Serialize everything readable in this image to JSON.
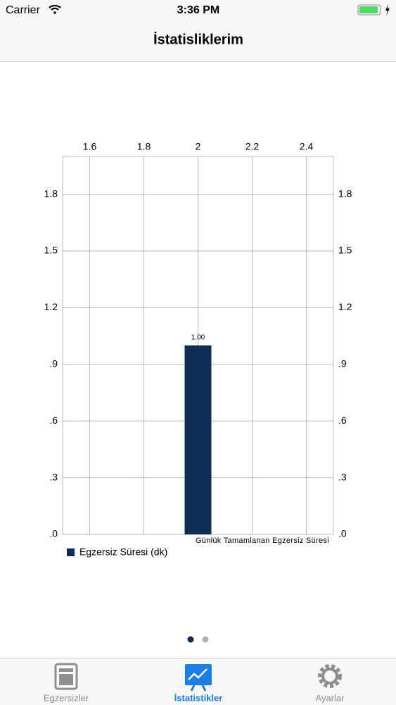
{
  "status_bar": {
    "carrier": "Carrier",
    "time": "3:36 PM"
  },
  "nav_title": "İstatisliklerim",
  "chart_data": {
    "type": "bar",
    "x": [
      2.0
    ],
    "series": [
      {
        "name": "Egzersiz Süresi (dk)",
        "color": "#0d2d52",
        "values": [
          1.0
        ],
        "value_labels": [
          "1.00"
        ]
      }
    ],
    "description": "Günlük Tamamlanan Egzersiz Süresi",
    "xlim": [
      1.5,
      2.5
    ],
    "xticks": [
      1.6,
      1.8,
      2.0,
      2.2,
      2.4
    ],
    "ylim": [
      0,
      2.0
    ],
    "yticks": [
      {
        "value": 0,
        "label": ".0"
      },
      {
        "value": 0.3,
        "label": ".3"
      },
      {
        "value": 0.6,
        "label": ".6"
      },
      {
        "value": 0.9,
        "label": ".9"
      },
      1.2,
      1.5,
      1.8
    ],
    "y2lim": [
      0,
      2.0
    ],
    "y2ticks": [
      {
        "value": 0,
        "label": ".0"
      },
      {
        "value": 0.3,
        "label": ".3"
      },
      {
        "value": 0.6,
        "label": ".6"
      },
      {
        "value": 0.9,
        "label": ".9"
      },
      1.2,
      1.5,
      1.8
    ],
    "grid": true
  },
  "tabs": [
    {
      "label": "Egzersizler",
      "active": false
    },
    {
      "label": "İstatistikler",
      "active": true
    },
    {
      "label": "Ayarlar",
      "active": false
    }
  ]
}
